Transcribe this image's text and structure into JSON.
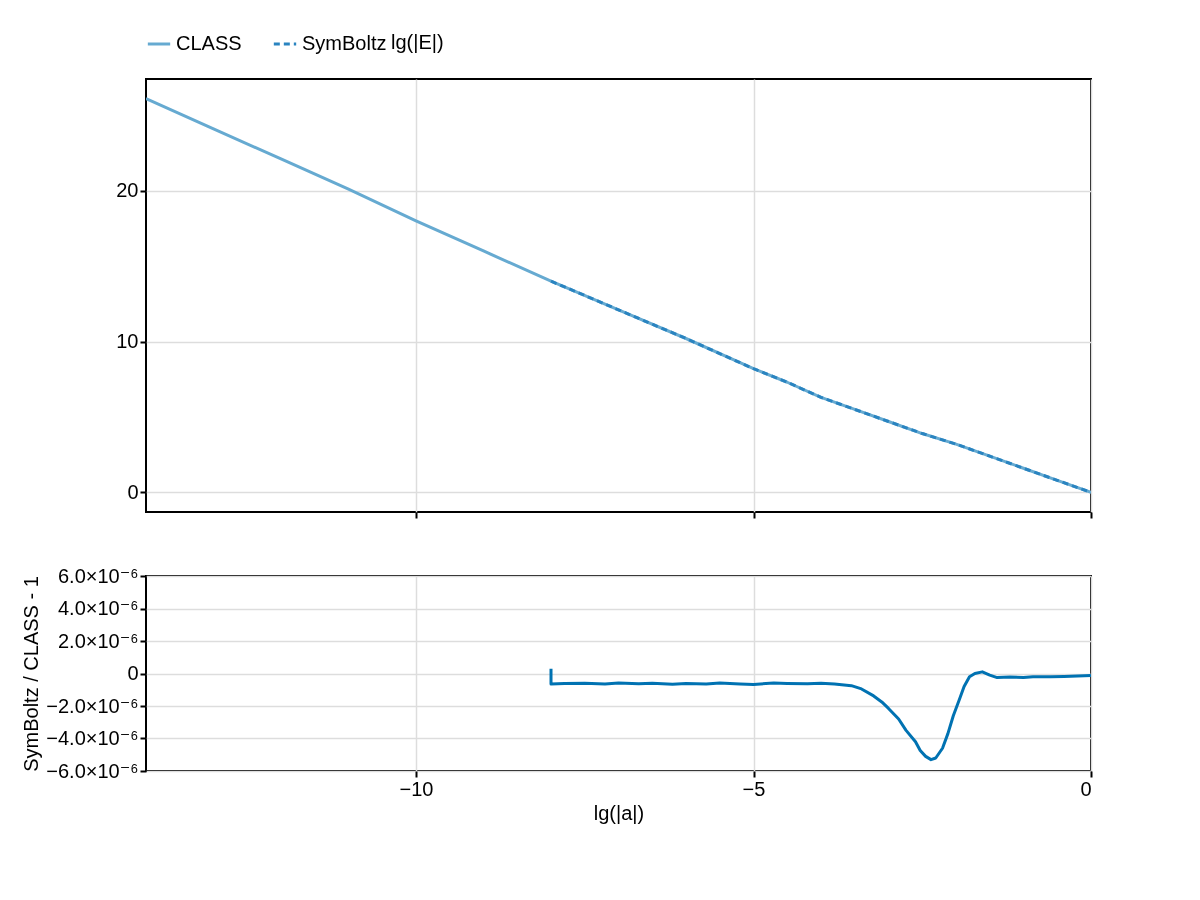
{
  "chart_data": [
    {
      "type": "line",
      "xlim": [
        -14,
        0
      ],
      "xticks": [
        -10,
        -5,
        0
      ],
      "ylim": [
        -1.3,
        27.4
      ],
      "yticks": [
        0,
        10,
        20
      ],
      "grid": true,
      "legend": "top",
      "legend_title": "lg(|E|)",
      "tick_labels": "y",
      "series": [
        {
          "name": "CLASS",
          "color": "#66aad1",
          "line_style": "solid",
          "x": [
            -14,
            -13,
            -12,
            -11,
            -10,
            -9,
            -8,
            -7,
            -6,
            -5,
            -4.5,
            -4,
            -3.5,
            -3,
            -2.5,
            -2,
            -1.5,
            -1,
            -0.5,
            0
          ],
          "values": [
            26.1,
            24.1,
            22.1,
            20.1,
            18.0,
            16.0,
            14.0,
            12.1,
            10.2,
            8.2,
            7.3,
            6.3,
            5.5,
            4.7,
            3.9,
            3.2,
            2.4,
            1.6,
            0.8,
            0
          ]
        },
        {
          "name": "SymBoltz",
          "color": "#2a84c0",
          "line_style": "dashed",
          "x": [
            -8,
            -7,
            -6,
            -5,
            -4.5,
            -4,
            -3.5,
            -3,
            -2.5,
            -2,
            -1.5,
            -1,
            -0.5,
            0
          ],
          "values": [
            14.0,
            12.1,
            10.2,
            8.2,
            7.3,
            6.3,
            5.5,
            4.7,
            3.9,
            3.2,
            2.4,
            1.6,
            0.8,
            0
          ]
        }
      ]
    },
    {
      "type": "line",
      "xlabel": "lg(|a|)",
      "ylabel": "SymBoltz / CLASS - 1",
      "xlim": [
        -14,
        0
      ],
      "xticks": [
        -10,
        -5,
        0
      ],
      "ylim": [
        -6e-06,
        6e-06
      ],
      "yticks": [
        {
          "value": -6e-06,
          "label": "−6.0×10⁻⁶"
        },
        {
          "value": -4e-06,
          "label": "−4.0×10⁻⁶"
        },
        {
          "value": -2e-06,
          "label": "−2.0×10⁻⁶"
        },
        {
          "value": 0,
          "label": "0"
        },
        {
          "value": 2e-06,
          "label": "2.0×10⁻⁶"
        },
        {
          "value": 4e-06,
          "label": "4.0×10⁻⁶"
        },
        {
          "value": 6e-06,
          "label": "6.0×10⁻⁶"
        }
      ],
      "grid": true,
      "series": [
        {
          "color": "#0072b2",
          "line_style": "solid",
          "x": [
            -8,
            -8,
            -7.8,
            -7.5,
            -7.2,
            -7,
            -6.7,
            -6.5,
            -6.2,
            -6,
            -5.7,
            -5.5,
            -5.2,
            -5,
            -4.7,
            -4.5,
            -4.2,
            -4,
            -3.8,
            -3.55,
            -3.4,
            -3.22,
            -3.1,
            -3.0,
            -2.85,
            -2.74,
            -2.6,
            -2.53,
            -2.45,
            -2.37,
            -2.3,
            -2.2,
            -2.12,
            -2.04,
            -1.95,
            -1.88,
            -1.8,
            -1.72,
            -1.61,
            -1.5,
            -1.39,
            -1.2,
            -1.0,
            -0.86,
            -0.6,
            -0.4,
            -0.2,
            0
          ],
          "values": [
            3e-07,
            -6.5e-07,
            -6.2e-07,
            -6e-07,
            -6.5e-07,
            -5.8e-07,
            -6.3e-07,
            -6e-07,
            -6.6e-07,
            -6.2e-07,
            -6.5e-07,
            -5.8e-07,
            -6.4e-07,
            -6.7e-07,
            -5.9e-07,
            -6.1e-07,
            -6.3e-07,
            -6e-07,
            -6.5e-07,
            -7.5e-07,
            -9.5e-07,
            -1.38e-06,
            -1.75e-06,
            -2.15e-06,
            -2.8e-06,
            -3.5e-06,
            -4.2e-06,
            -4.74e-06,
            -5.1e-06,
            -5.3e-06,
            -5.2e-06,
            -4.6e-06,
            -3.7e-06,
            -2.6e-06,
            -1.6e-06,
            -8e-07,
            -2e-07,
            0,
            1e-07,
            -1e-07,
            -2.5e-07,
            -2.2e-07,
            -2.5e-07,
            -2e-07,
            -2e-07,
            -1.8e-07,
            -1.5e-07,
            -1.2e-07
          ]
        }
      ]
    }
  ]
}
